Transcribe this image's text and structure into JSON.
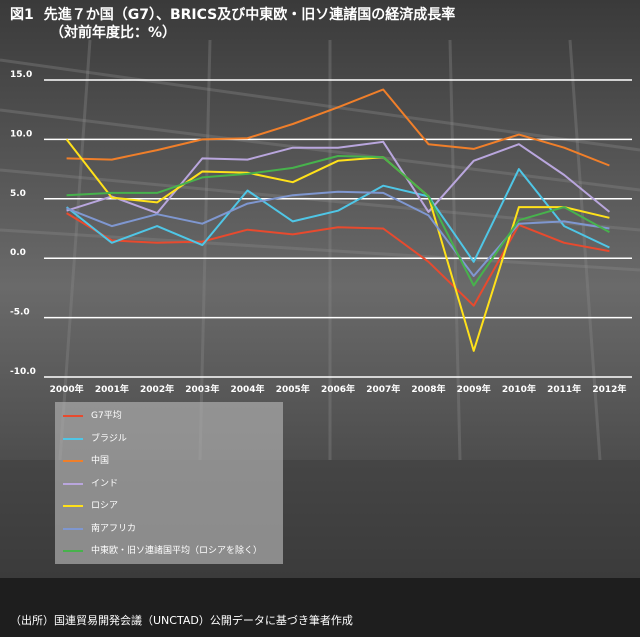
{
  "header": {
    "figure_no": "図1",
    "title": "先進７か国（G7）、BRICS及び中東欧・旧ソ連諸国の経済成長率",
    "subtitle": "（対前年度比：%）"
  },
  "source": "（出所）国連貿易開発会議（UNCTAD）公開データに基づき筆者作成",
  "chart_data": {
    "type": "line",
    "categories": [
      "2000年",
      "2001年",
      "2002年",
      "2003年",
      "2004年",
      "2005年",
      "2006年",
      "2007年",
      "2008年",
      "2009年",
      "2010年",
      "2011年",
      "2012年"
    ],
    "ylim": [
      -10,
      15
    ],
    "yticks": [
      "15.0",
      "10.0",
      "5.0",
      "0.0",
      "-5.0",
      "-10.0"
    ],
    "ytick_values": [
      15,
      10,
      5,
      0,
      -5,
      -10
    ],
    "grid": true,
    "legend_position": "bottom-left",
    "series": [
      {
        "name": "G7平均",
        "color": "#e84a2e",
        "values": [
          3.8,
          1.5,
          1.3,
          1.4,
          2.4,
          2.0,
          2.6,
          2.5,
          -0.3,
          -4.0,
          2.8,
          1.3,
          0.6
        ]
      },
      {
        "name": "ブラジル",
        "color": "#4fc6e6",
        "values": [
          4.3,
          1.3,
          2.7,
          1.1,
          5.7,
          3.1,
          4.0,
          6.1,
          5.2,
          -0.3,
          7.5,
          2.7,
          0.9
        ]
      },
      {
        "name": "中国",
        "color": "#f07f2a",
        "values": [
          8.4,
          8.3,
          9.1,
          10.0,
          10.1,
          11.3,
          12.7,
          14.2,
          9.6,
          9.2,
          10.4,
          9.3,
          7.8
        ]
      },
      {
        "name": "インド",
        "color": "#b9a6dd",
        "values": [
          4.0,
          5.2,
          3.8,
          8.4,
          8.3,
          9.3,
          9.3,
          9.8,
          3.9,
          8.2,
          9.6,
          7.0,
          3.9
        ]
      },
      {
        "name": "ロシア",
        "color": "#ffe11a",
        "values": [
          10.0,
          5.1,
          4.7,
          7.3,
          7.2,
          6.4,
          8.2,
          8.5,
          5.2,
          -7.8,
          4.3,
          4.3,
          3.4
        ]
      },
      {
        "name": "南アフリカ",
        "color": "#7f97d0",
        "values": [
          4.2,
          2.7,
          3.7,
          2.9,
          4.6,
          5.3,
          5.6,
          5.5,
          3.6,
          -1.5,
          2.9,
          3.1,
          2.5
        ]
      },
      {
        "name": "中東欧・旧ソ連諸国平均（ロシアを除く）",
        "color": "#47b24c",
        "values": [
          5.3,
          5.5,
          5.5,
          6.8,
          7.1,
          7.6,
          8.6,
          8.5,
          5.2,
          -2.3,
          3.2,
          4.3,
          2.2
        ]
      }
    ]
  }
}
